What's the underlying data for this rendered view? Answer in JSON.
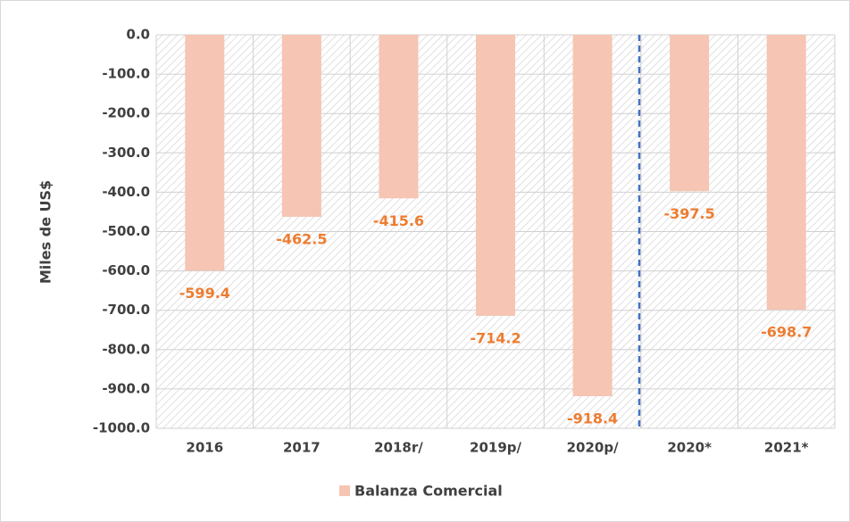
{
  "chart_data": {
    "type": "bar",
    "y_axis_label": "Miles de US$",
    "categories": [
      "2016",
      "2017",
      "2018r/",
      "2019p/",
      "2020p/",
      "2020*",
      "2021*"
    ],
    "series": [
      {
        "name": "Balanza Comercial",
        "color": "#f6c5b3",
        "values": [
          -599.4,
          -462.5,
          -415.6,
          -714.2,
          -918.4,
          -397.5,
          -698.7
        ]
      }
    ],
    "ylim": [
      -1000,
      0
    ],
    "yticks": [
      {
        "value": 0,
        "label": "0.0"
      },
      {
        "value": -100,
        "label": "-100.0"
      },
      {
        "value": -200,
        "label": "-200.0"
      },
      {
        "value": -300,
        "label": "-300.0"
      },
      {
        "value": -400,
        "label": "-400.0"
      },
      {
        "value": -500,
        "label": "-500.0"
      },
      {
        "value": -600,
        "label": "-600.0"
      },
      {
        "value": -700,
        "label": "-700.0"
      },
      {
        "value": -800,
        "label": "-800.0"
      },
      {
        "value": -900,
        "label": "-900.0"
      },
      {
        "value": -1000,
        "label": "-1000.0"
      }
    ],
    "grid": true,
    "legend": "bottom",
    "label_color": "#ed7d31"
  }
}
